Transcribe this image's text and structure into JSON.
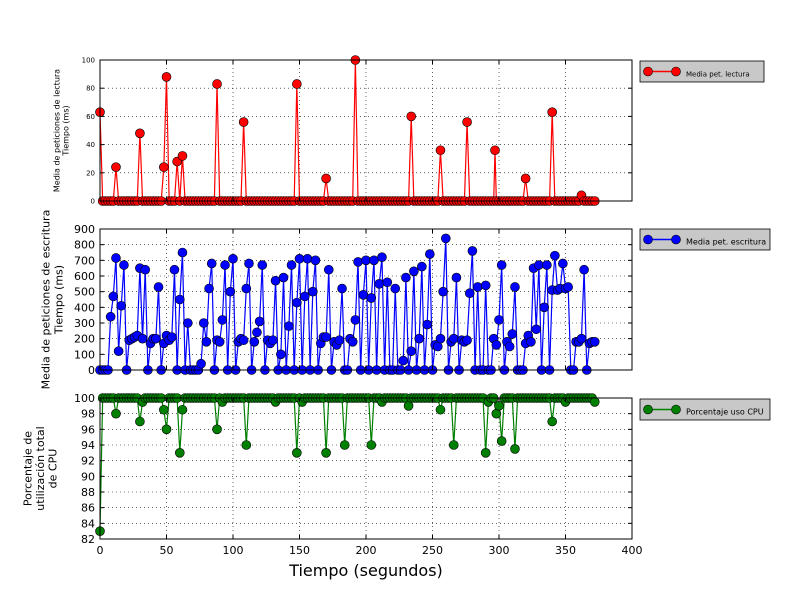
{
  "chart_data": [
    {
      "type": "line",
      "ylabel_lines": [
        "Media de peticiones de lectura",
        "Tiempo (ms)"
      ],
      "xlim": [
        0,
        400
      ],
      "ylim": [
        0,
        100
      ],
      "yticks": [
        0,
        20,
        40,
        60,
        80,
        100
      ],
      "xticks": [
        0,
        50,
        100,
        150,
        200,
        250,
        300,
        350,
        400
      ],
      "grid": true,
      "legend_position": "outside-right",
      "series": [
        {
          "name": "Media pet. lectura",
          "color": "#ff0000",
          "baseline_value": 0,
          "baseline_range": [
            0,
            372
          ],
          "baseline_step": 2,
          "points": [
            [
              0,
              63
            ],
            [
              12,
              24
            ],
            [
              30,
              48
            ],
            [
              48,
              24
            ],
            [
              50,
              88
            ],
            [
              58,
              28
            ],
            [
              62,
              32
            ],
            [
              88,
              83
            ],
            [
              108,
              56
            ],
            [
              148,
              83
            ],
            [
              170,
              16
            ],
            [
              192,
              100
            ],
            [
              234,
              60
            ],
            [
              256,
              36
            ],
            [
              276,
              56
            ],
            [
              297,
              36
            ],
            [
              320,
              16
            ],
            [
              340,
              63
            ],
            [
              362,
              4
            ]
          ]
        }
      ]
    },
    {
      "type": "line",
      "ylabel_lines": [
        "Media de peticiones de escritura",
        "Tiempo (ms)"
      ],
      "xlim": [
        0,
        400
      ],
      "ylim": [
        0,
        900
      ],
      "yticks": [
        0,
        100,
        200,
        300,
        400,
        500,
        600,
        700,
        800,
        900
      ],
      "xticks": [
        0,
        50,
        100,
        150,
        200,
        250,
        300,
        350,
        400
      ],
      "grid": true,
      "legend_position": "outside-right",
      "series": [
        {
          "name": "Media pet. escritura",
          "color": "#0000ff",
          "points": [
            [
              0,
              0
            ],
            [
              2,
              0
            ],
            [
              4,
              0
            ],
            [
              6,
              0
            ],
            [
              8,
              340
            ],
            [
              10,
              470
            ],
            [
              12,
              715
            ],
            [
              14,
              120
            ],
            [
              16,
              410
            ],
            [
              18,
              670
            ],
            [
              20,
              0
            ],
            [
              22,
              190
            ],
            [
              24,
              200
            ],
            [
              26,
              210
            ],
            [
              28,
              220
            ],
            [
              30,
              650
            ],
            [
              32,
              200
            ],
            [
              34,
              640
            ],
            [
              36,
              0
            ],
            [
              38,
              170
            ],
            [
              40,
              200
            ],
            [
              42,
              200
            ],
            [
              44,
              530
            ],
            [
              46,
              0
            ],
            [
              48,
              170
            ],
            [
              50,
              220
            ],
            [
              52,
              190
            ],
            [
              54,
              210
            ],
            [
              56,
              640
            ],
            [
              58,
              0
            ],
            [
              60,
              450
            ],
            [
              62,
              750
            ],
            [
              64,
              0
            ],
            [
              66,
              300
            ],
            [
              68,
              0
            ],
            [
              70,
              0
            ],
            [
              72,
              0
            ],
            [
              74,
              0
            ],
            [
              76,
              40
            ],
            [
              78,
              300
            ],
            [
              80,
              180
            ],
            [
              82,
              520
            ],
            [
              84,
              680
            ],
            [
              86,
              0
            ],
            [
              88,
              190
            ],
            [
              90,
              180
            ],
            [
              92,
              320
            ],
            [
              94,
              670
            ],
            [
              96,
              0
            ],
            [
              98,
              500
            ],
            [
              100,
              710
            ],
            [
              102,
              0
            ],
            [
              104,
              180
            ],
            [
              106,
              200
            ],
            [
              108,
              190
            ],
            [
              110,
              520
            ],
            [
              112,
              680
            ],
            [
              114,
              0
            ],
            [
              116,
              180
            ],
            [
              118,
              240
            ],
            [
              120,
              310
            ],
            [
              122,
              670
            ],
            [
              124,
              0
            ],
            [
              126,
              190
            ],
            [
              128,
              170
            ],
            [
              130,
              190
            ],
            [
              132,
              570
            ],
            [
              134,
              0
            ],
            [
              136,
              100
            ],
            [
              138,
              590
            ],
            [
              140,
              0
            ],
            [
              142,
              280
            ],
            [
              144,
              670
            ],
            [
              146,
              0
            ],
            [
              148,
              430
            ],
            [
              150,
              710
            ],
            [
              152,
              0
            ],
            [
              154,
              470
            ],
            [
              156,
              710
            ],
            [
              158,
              0
            ],
            [
              160,
              500
            ],
            [
              162,
              700
            ],
            [
              164,
              0
            ],
            [
              166,
              170
            ],
            [
              168,
              210
            ],
            [
              170,
              210
            ],
            [
              172,
              640
            ],
            [
              174,
              0
            ],
            [
              176,
              180
            ],
            [
              178,
              160
            ],
            [
              180,
              190
            ],
            [
              182,
              520
            ],
            [
              184,
              0
            ],
            [
              186,
              0
            ],
            [
              188,
              200
            ],
            [
              190,
              180
            ],
            [
              192,
              320
            ],
            [
              194,
              690
            ],
            [
              196,
              0
            ],
            [
              198,
              480
            ],
            [
              200,
              700
            ],
            [
              202,
              0
            ],
            [
              204,
              460
            ],
            [
              206,
              700
            ],
            [
              208,
              0
            ],
            [
              210,
              550
            ],
            [
              212,
              720
            ],
            [
              214,
              0
            ],
            [
              216,
              560
            ],
            [
              218,
              0
            ],
            [
              220,
              0
            ],
            [
              222,
              520
            ],
            [
              224,
              0
            ],
            [
              226,
              0
            ],
            [
              228,
              60
            ],
            [
              230,
              590
            ],
            [
              232,
              0
            ],
            [
              234,
              120
            ],
            [
              236,
              630
            ],
            [
              238,
              0
            ],
            [
              240,
              200
            ],
            [
              242,
              660
            ],
            [
              244,
              0
            ],
            [
              246,
              290
            ],
            [
              248,
              740
            ],
            [
              250,
              0
            ],
            [
              252,
              160
            ],
            [
              254,
              150
            ],
            [
              256,
              200
            ],
            [
              258,
              500
            ],
            [
              260,
              840
            ],
            [
              262,
              0
            ],
            [
              264,
              180
            ],
            [
              266,
              200
            ],
            [
              268,
              590
            ],
            [
              270,
              0
            ],
            [
              272,
              190
            ],
            [
              274,
              180
            ],
            [
              276,
              190
            ],
            [
              278,
              490
            ],
            [
              280,
              760
            ],
            [
              282,
              0
            ],
            [
              284,
              530
            ],
            [
              286,
              0
            ],
            [
              288,
              0
            ],
            [
              290,
              540
            ],
            [
              292,
              0
            ],
            [
              294,
              0
            ],
            [
              296,
              200
            ],
            [
              298,
              160
            ],
            [
              300,
              320
            ],
            [
              302,
              670
            ],
            [
              304,
              0
            ],
            [
              306,
              180
            ],
            [
              308,
              150
            ],
            [
              310,
              230
            ],
            [
              312,
              530
            ],
            [
              314,
              0
            ],
            [
              316,
              0
            ],
            [
              318,
              0
            ],
            [
              320,
              170
            ],
            [
              322,
              220
            ],
            [
              324,
              180
            ],
            [
              326,
              650
            ],
            [
              328,
              260
            ],
            [
              330,
              670
            ],
            [
              332,
              0
            ],
            [
              334,
              400
            ],
            [
              336,
              670
            ],
            [
              338,
              0
            ],
            [
              340,
              510
            ],
            [
              342,
              730
            ],
            [
              344,
              510
            ],
            [
              346,
              520
            ],
            [
              348,
              680
            ],
            [
              350,
              520
            ],
            [
              352,
              530
            ],
            [
              354,
              0
            ],
            [
              356,
              0
            ],
            [
              358,
              180
            ],
            [
              360,
              180
            ],
            [
              362,
              200
            ],
            [
              364,
              640
            ],
            [
              366,
              0
            ],
            [
              368,
              170
            ],
            [
              370,
              180
            ],
            [
              372,
              180
            ]
          ]
        }
      ]
    },
    {
      "type": "line",
      "ylabel_lines": [
        "Porcentaje de",
        "utilización total",
        "de CPU"
      ],
      "xlabel": "Tiempo (segundos)",
      "xlim": [
        0,
        400
      ],
      "ylim": [
        82,
        100
      ],
      "yticks": [
        82,
        84,
        86,
        88,
        90,
        92,
        94,
        96,
        98,
        100
      ],
      "xticks": [
        0,
        50,
        100,
        150,
        200,
        250,
        300,
        350,
        400
      ],
      "grid": true,
      "legend_position": "outside-right",
      "series": [
        {
          "name": "Porcentaje uso CPU",
          "color": "#008000",
          "baseline_value": 100,
          "baseline_range": [
            0,
            372
          ],
          "baseline_step": 2,
          "points": [
            [
              0,
              83
            ],
            [
              12,
              98
            ],
            [
              30,
              97
            ],
            [
              32,
              99.5
            ],
            [
              48,
              98.5
            ],
            [
              50,
              96
            ],
            [
              60,
              93
            ],
            [
              62,
              98.5
            ],
            [
              88,
              96
            ],
            [
              92,
              99.5
            ],
            [
              110,
              94
            ],
            [
              132,
              99.5
            ],
            [
              148,
              93
            ],
            [
              152,
              99.5
            ],
            [
              170,
              93
            ],
            [
              184,
              94
            ],
            [
              204,
              94
            ],
            [
              212,
              99.5
            ],
            [
              232,
              99
            ],
            [
              256,
              98.5
            ],
            [
              266,
              94
            ],
            [
              290,
              93
            ],
            [
              292,
              99.5
            ],
            [
              298,
              98
            ],
            [
              300,
              99
            ],
            [
              302,
              94.5
            ],
            [
              312,
              93.5
            ],
            [
              340,
              97
            ],
            [
              350,
              99.5
            ],
            [
              372,
              99.5
            ]
          ]
        }
      ]
    }
  ]
}
